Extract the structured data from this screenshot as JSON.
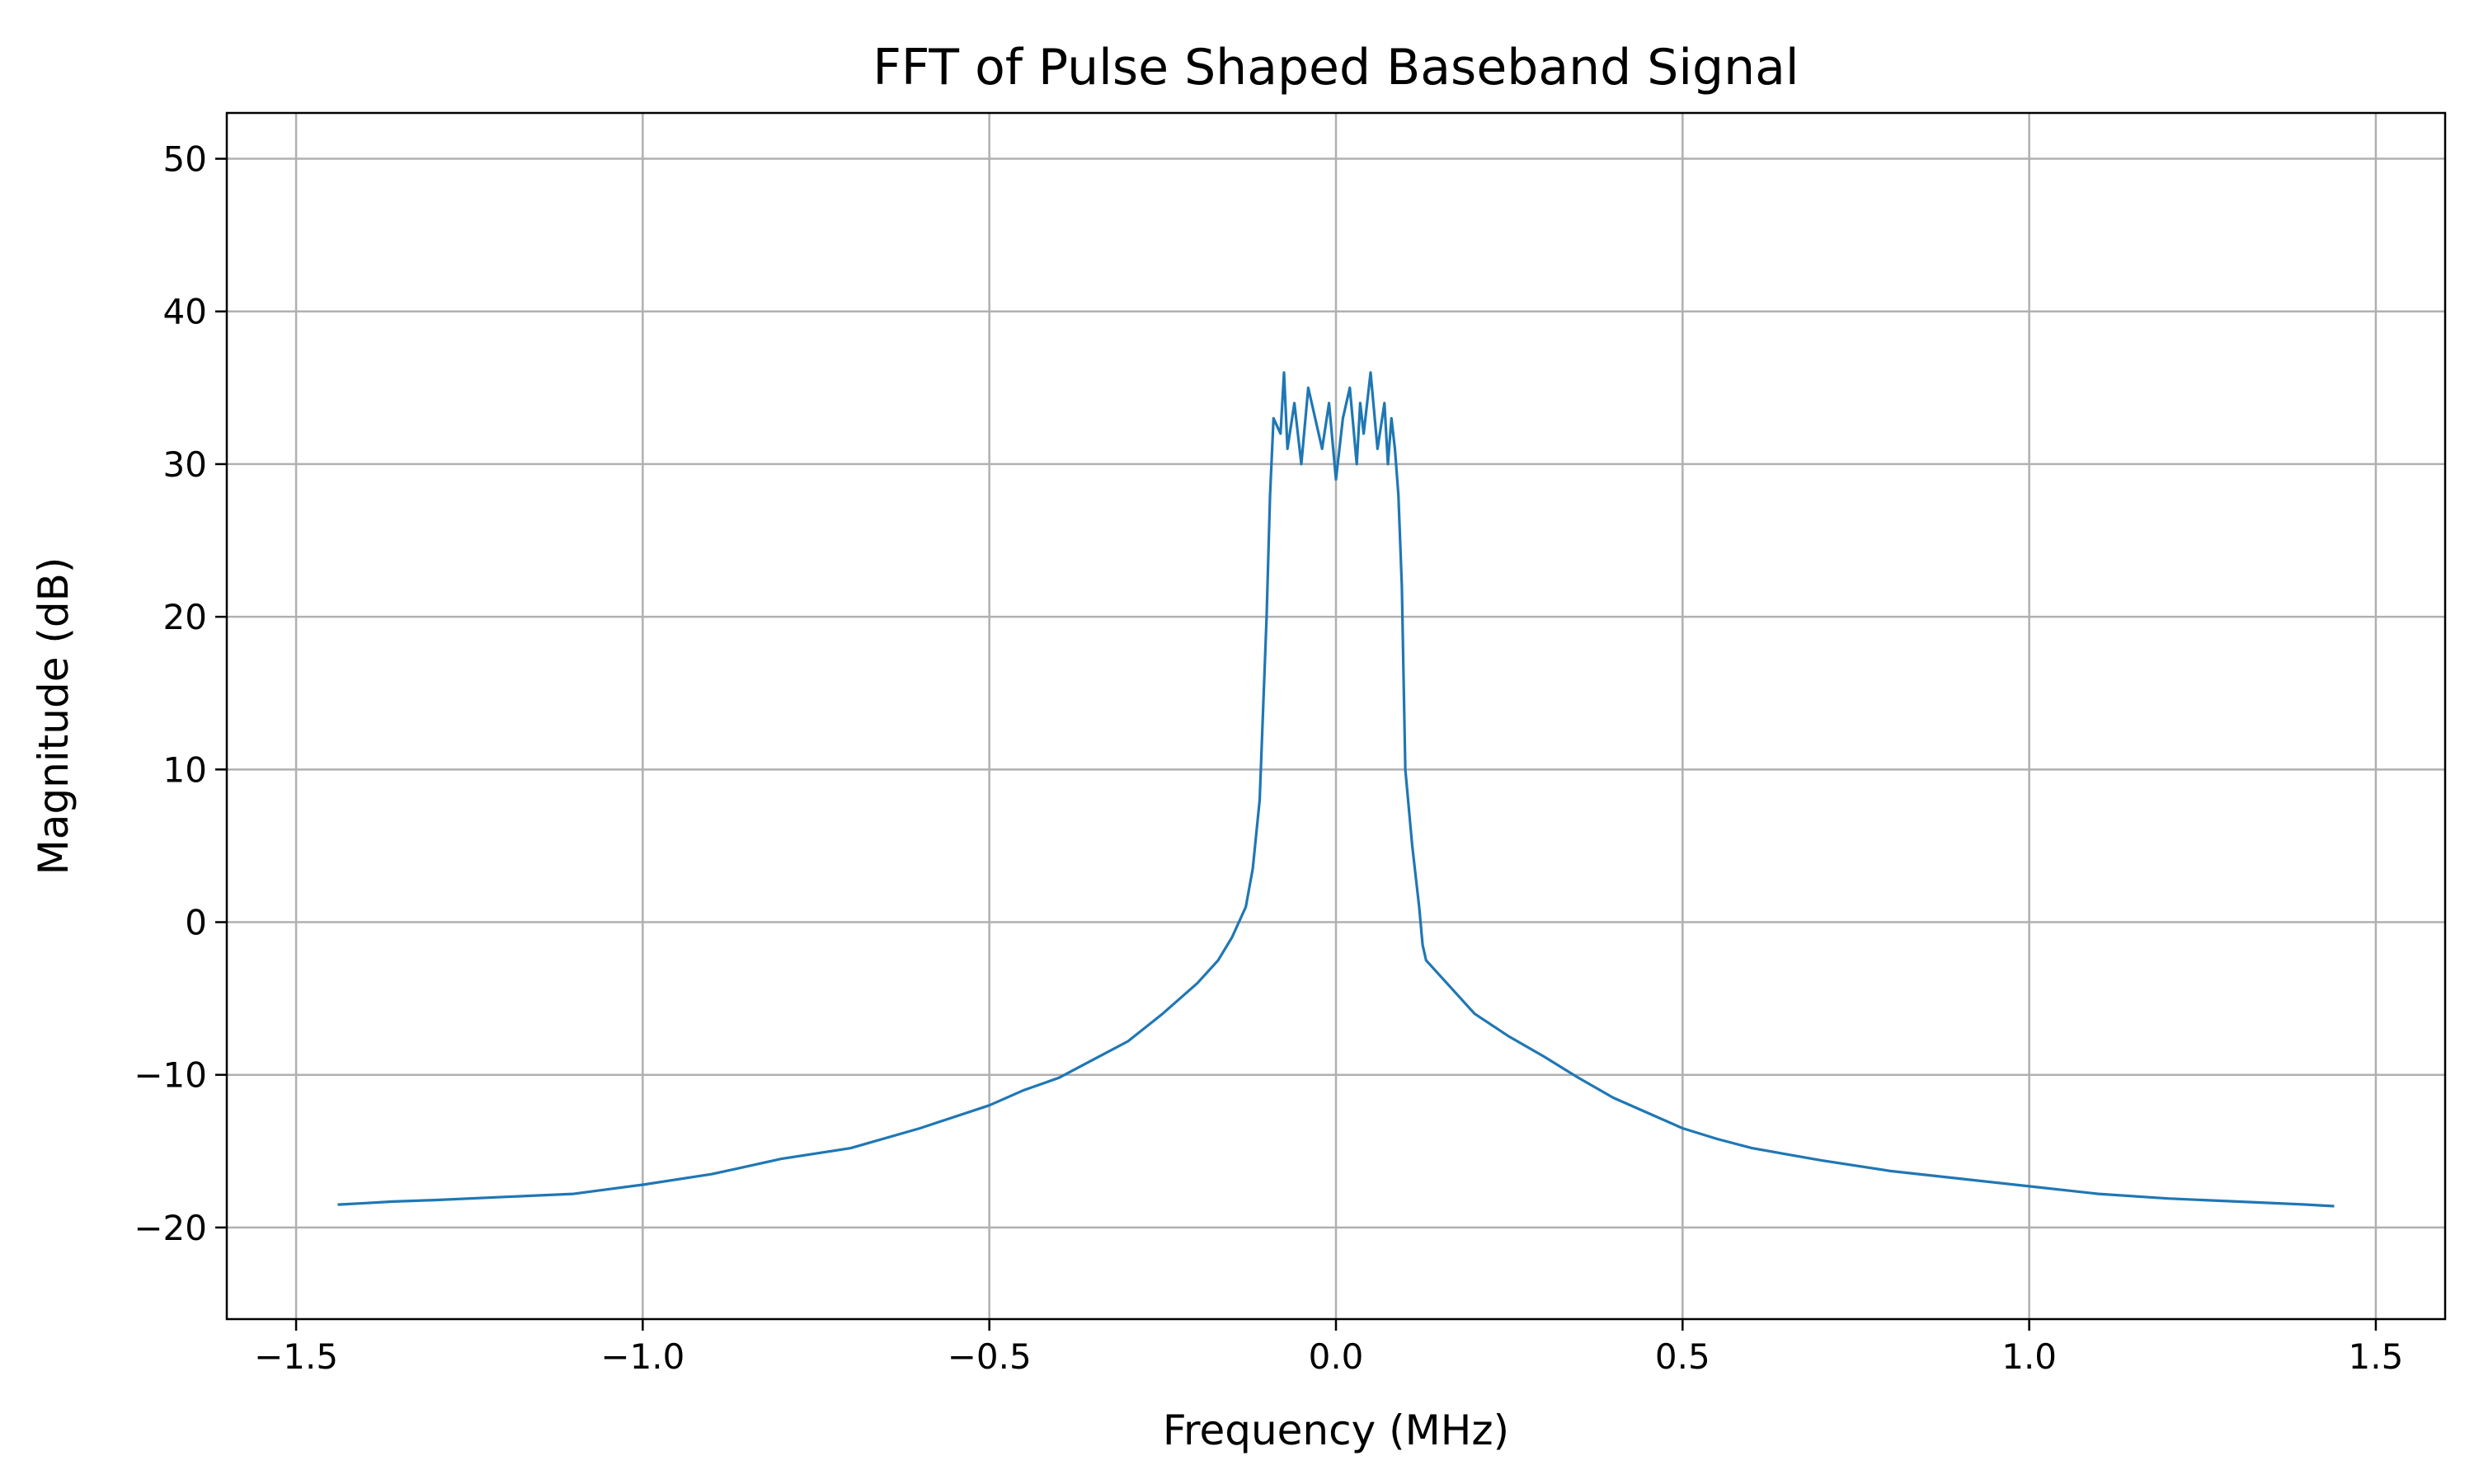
{
  "chart_data": {
    "type": "line",
    "title": "FFT of Pulse Shaped Baseband Signal",
    "xlabel": "Frequency (MHz)",
    "ylabel": "Magnitude (dB)",
    "xlim": [
      -1.6,
      1.6
    ],
    "ylim": [
      -26,
      53
    ],
    "xticks": [
      -1.5,
      -1.0,
      -0.5,
      0.0,
      0.5,
      1.0,
      1.5
    ],
    "xtick_labels": [
      "−1.5",
      "−1.0",
      "−0.5",
      "0.0",
      "0.5",
      "1.0",
      "1.5"
    ],
    "yticks": [
      -20,
      -10,
      0,
      10,
      20,
      30,
      40,
      50
    ],
    "ytick_labels": [
      "−20",
      "−10",
      "0",
      "10",
      "20",
      "30",
      "40",
      "50"
    ],
    "grid": true,
    "legend": "none",
    "series_color": "#1f77b4",
    "series": [
      {
        "x": [
          -1.44,
          -1.4,
          -1.36,
          -1.3,
          -1.2,
          -1.1,
          -1.0,
          -0.9,
          -0.8,
          -0.7,
          -0.6,
          -0.5,
          -0.45,
          -0.4,
          -0.35,
          -0.3,
          -0.25,
          -0.2,
          -0.17,
          -0.15,
          -0.13,
          -0.12,
          -0.11,
          -0.1,
          -0.095,
          -0.09,
          -0.08,
          -0.075,
          -0.07,
          -0.06,
          -0.05,
          -0.04,
          -0.03,
          -0.02,
          -0.01,
          0.0,
          0.01,
          0.02,
          0.03,
          0.035,
          0.04,
          0.05,
          0.06,
          0.07,
          0.075,
          0.08,
          0.085,
          0.09,
          0.095,
          0.1,
          0.11,
          0.12,
          0.125,
          0.13,
          0.15,
          0.18,
          0.2,
          0.25,
          0.3,
          0.35,
          0.4,
          0.45,
          0.5,
          0.55,
          0.6,
          0.7,
          0.8,
          0.9,
          1.0,
          1.1,
          1.2,
          1.3,
          1.4,
          1.44
        ],
        "y": [
          -18.5,
          -18.4,
          -18.3,
          -18.2,
          -18.0,
          -17.8,
          -17.2,
          -16.5,
          -15.5,
          -14.8,
          -13.5,
          -12.0,
          -11.0,
          -10.2,
          -9.0,
          -7.8,
          -6.0,
          -4.0,
          -2.5,
          -1.0,
          1.0,
          3.5,
          8.0,
          20.0,
          28.0,
          33.0,
          32.0,
          36.0,
          31.0,
          34.0,
          30.0,
          35.0,
          33.0,
          31.0,
          34.0,
          29.0,
          33.0,
          35.0,
          30.0,
          34.0,
          32.0,
          36.0,
          31.0,
          34.0,
          30.0,
          33.0,
          31.0,
          28.0,
          22.0,
          10.0,
          5.0,
          1.0,
          -1.5,
          -2.5,
          -3.5,
          -5.0,
          -6.0,
          -7.5,
          -8.8,
          -10.2,
          -11.5,
          -12.5,
          -13.5,
          -14.2,
          -14.8,
          -15.6,
          -16.3,
          -16.8,
          -17.3,
          -17.8,
          -18.1,
          -18.3,
          -18.5,
          -18.6
        ]
      }
    ]
  }
}
